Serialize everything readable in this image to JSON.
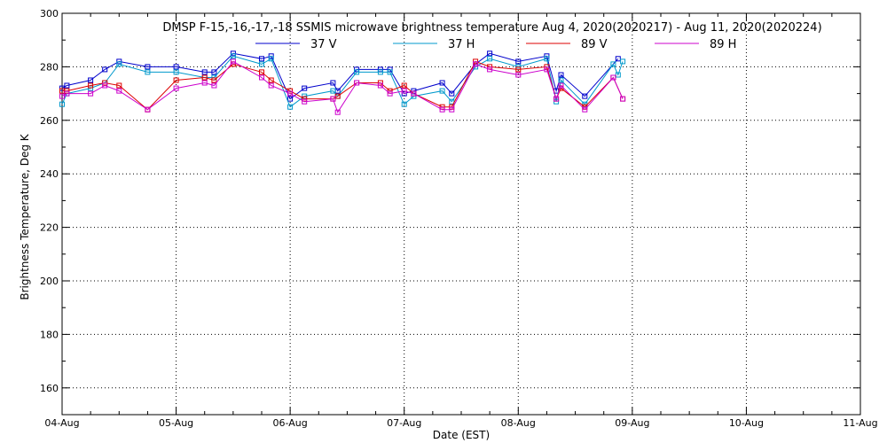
{
  "chart_data": {
    "type": "line",
    "title": "DMSP F-15,-16,-17,-18 SSMIS microwave brightness temperature Aug  4, 2020(2020217) - Aug 11, 2020(2020224)",
    "xlabel": "Date (EST)",
    "ylabel": "Brightness Temperature, Deg K",
    "ylim": [
      150,
      300
    ],
    "xlim": [
      "2020-08-04 00:00",
      "2020-08-11 00:00"
    ],
    "yticks": [
      160,
      180,
      200,
      220,
      240,
      260,
      280,
      300
    ],
    "xtick_labels": [
      "04-Aug",
      "05-Aug",
      "06-Aug",
      "07-Aug",
      "08-Aug",
      "09-Aug",
      "10-Aug",
      "11-Aug"
    ],
    "grid": true,
    "legend_position": "top",
    "series": [
      {
        "name": "37 V",
        "color": "#0000cc",
        "x": [
          "2020-08-04 00:00",
          "2020-08-04 01:00",
          "2020-08-04 06:00",
          "2020-08-04 09:00",
          "2020-08-04 12:00",
          "2020-08-04 18:00",
          "2020-08-05 00:00",
          "2020-08-05 06:00",
          "2020-08-05 08:00",
          "2020-08-05 12:00",
          "2020-08-05 18:00",
          "2020-08-05 20:00",
          "2020-08-06 00:00",
          "2020-08-06 03:00",
          "2020-08-06 09:00",
          "2020-08-06 10:00",
          "2020-08-06 14:00",
          "2020-08-06 19:00",
          "2020-08-06 21:00",
          "2020-08-07 00:00",
          "2020-08-07 02:00",
          "2020-08-07 08:00",
          "2020-08-07 10:00",
          "2020-08-07 15:00",
          "2020-08-07 18:00",
          "2020-08-08 00:00",
          "2020-08-08 06:00",
          "2020-08-08 08:00",
          "2020-08-08 09:00",
          "2020-08-08 14:00",
          "2020-08-08 21:00"
        ],
        "values": [
          272,
          273,
          275,
          279,
          282,
          280,
          280,
          278,
          278,
          285,
          283,
          284,
          268,
          272,
          274,
          271,
          279,
          279,
          279,
          270,
          271,
          274,
          270,
          281,
          285,
          282,
          284,
          271,
          277,
          269,
          283
        ]
      },
      {
        "name": "37 H",
        "color": "#0099cc",
        "x": [
          "2020-08-04 00:00",
          "2020-08-04 01:00",
          "2020-08-04 06:00",
          "2020-08-04 09:00",
          "2020-08-04 12:00",
          "2020-08-04 18:00",
          "2020-08-05 00:00",
          "2020-08-05 06:00",
          "2020-08-05 08:00",
          "2020-08-05 12:00",
          "2020-08-05 18:00",
          "2020-08-05 20:00",
          "2020-08-06 00:00",
          "2020-08-06 03:00",
          "2020-08-06 09:00",
          "2020-08-06 10:00",
          "2020-08-06 14:00",
          "2020-08-06 19:00",
          "2020-08-06 21:00",
          "2020-08-07 00:00",
          "2020-08-07 02:00",
          "2020-08-07 08:00",
          "2020-08-07 10:00",
          "2020-08-07 15:00",
          "2020-08-07 18:00",
          "2020-08-08 00:00",
          "2020-08-08 06:00",
          "2020-08-08 08:00",
          "2020-08-08 09:00",
          "2020-08-08 14:00",
          "2020-08-08 20:00",
          "2020-08-08 21:00",
          "2020-08-08 22:00"
        ],
        "values": [
          266,
          270,
          272,
          274,
          281,
          278,
          278,
          276,
          276,
          284,
          281,
          283,
          265,
          269,
          271,
          269,
          278,
          278,
          278,
          266,
          269,
          271,
          267,
          280,
          283,
          280,
          283,
          267,
          275,
          266,
          281,
          277,
          282
        ]
      },
      {
        "name": "89 V",
        "color": "#dd0000",
        "x": [
          "2020-08-04 00:00",
          "2020-08-04 01:00",
          "2020-08-04 06:00",
          "2020-08-04 09:00",
          "2020-08-04 12:00",
          "2020-08-04 18:00",
          "2020-08-05 00:00",
          "2020-08-05 06:00",
          "2020-08-05 08:00",
          "2020-08-05 12:00",
          "2020-08-05 18:00",
          "2020-08-05 20:00",
          "2020-08-06 00:00",
          "2020-08-06 03:00",
          "2020-08-06 09:00",
          "2020-08-06 10:00",
          "2020-08-06 14:00",
          "2020-08-06 19:00",
          "2020-08-06 21:00",
          "2020-08-07 00:00",
          "2020-08-07 02:00",
          "2020-08-07 08:00",
          "2020-08-07 10:00",
          "2020-08-07 15:00",
          "2020-08-07 18:00",
          "2020-08-08 00:00",
          "2020-08-08 06:00",
          "2020-08-08 08:00",
          "2020-08-08 09:00",
          "2020-08-08 14:00",
          "2020-08-08 20:00",
          "2020-08-08 22:00"
        ],
        "values": [
          271,
          271,
          273,
          274,
          273,
          264,
          275,
          276,
          275,
          281,
          278,
          275,
          271,
          268,
          268,
          269,
          274,
          274,
          271,
          273,
          270,
          265,
          265,
          282,
          280,
          279,
          280,
          268,
          272,
          265,
          276,
          268
        ]
      },
      {
        "name": "89 H",
        "color": "#cc00cc",
        "x": [
          "2020-08-04 00:00",
          "2020-08-04 01:00",
          "2020-08-04 06:00",
          "2020-08-04 09:00",
          "2020-08-04 12:00",
          "2020-08-04 18:00",
          "2020-08-05 00:00",
          "2020-08-05 06:00",
          "2020-08-05 08:00",
          "2020-08-05 12:00",
          "2020-08-05 18:00",
          "2020-08-05 20:00",
          "2020-08-06 00:00",
          "2020-08-06 03:00",
          "2020-08-06 09:00",
          "2020-08-06 10:00",
          "2020-08-06 14:00",
          "2020-08-06 19:00",
          "2020-08-06 21:00",
          "2020-08-07 00:00",
          "2020-08-07 02:00",
          "2020-08-07 08:00",
          "2020-08-07 10:00",
          "2020-08-07 15:00",
          "2020-08-07 18:00",
          "2020-08-08 00:00",
          "2020-08-08 06:00",
          "2020-08-08 08:00",
          "2020-08-08 09:00",
          "2020-08-08 14:00",
          "2020-08-08 20:00",
          "2020-08-08 22:00"
        ],
        "values": [
          269,
          270,
          270,
          273,
          271,
          264,
          272,
          274,
          273,
          282,
          276,
          273,
          270,
          267,
          268,
          263,
          274,
          273,
          270,
          271,
          270,
          264,
          264,
          281,
          279,
          277,
          279,
          268,
          273,
          264,
          276,
          268
        ]
      }
    ]
  }
}
